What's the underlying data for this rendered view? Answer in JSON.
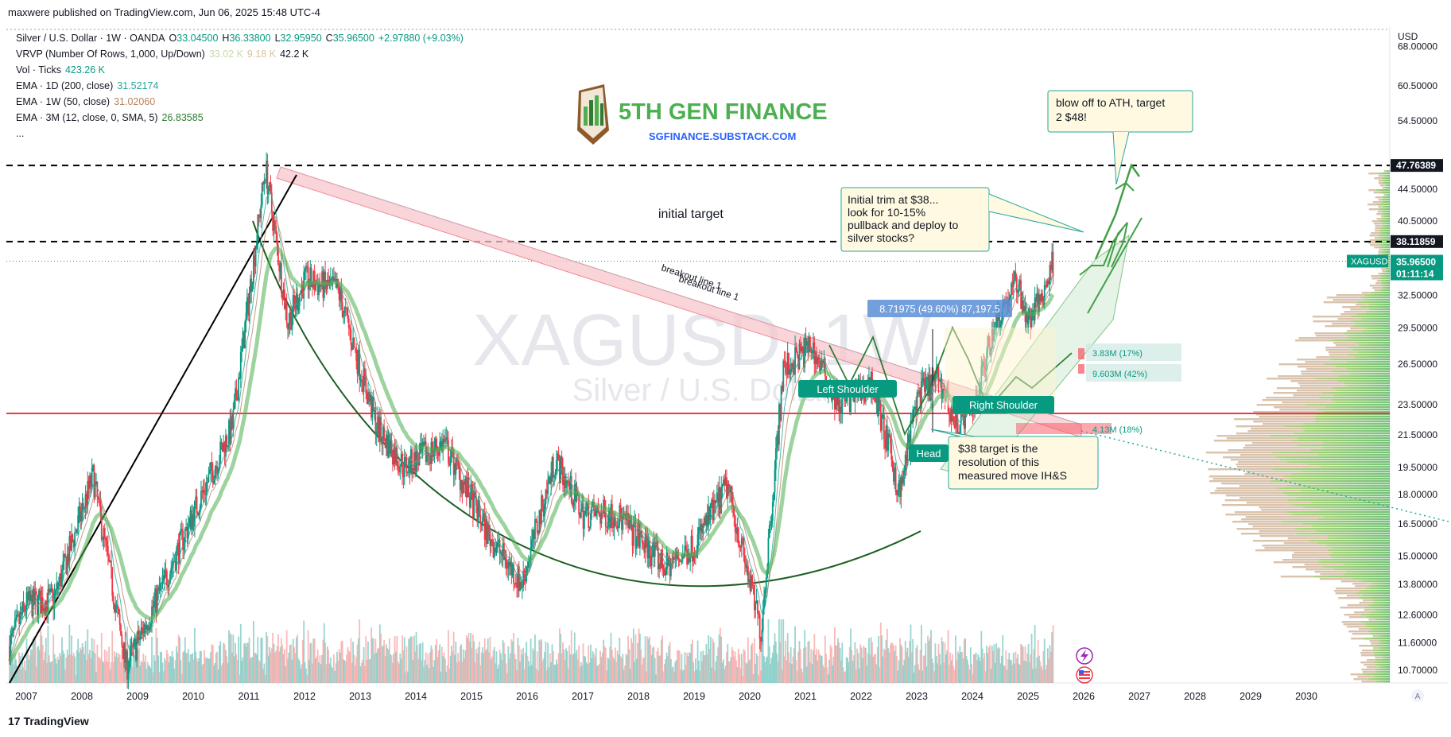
{
  "header": {
    "published": "maxwere published on TradingView.com, Jun 06, 2025 15:48 UTC-4"
  },
  "legend": {
    "symbol": "Silver / U.S. Dollar · 1W · OANDA",
    "ohlc": {
      "o_label": "O",
      "o": "33.04500",
      "h_label": "H",
      "h": "36.33800",
      "l_label": "L",
      "l": "32.95950",
      "c_label": "C",
      "c": "35.96500",
      "change": "+2.97880 (+9.03%)"
    },
    "vrvp": {
      "label": "VRVP (Number Of Rows, 1,000, Up/Down)",
      "v1": "33.02 K",
      "v2": "9.18 K",
      "v3": "42.2 K"
    },
    "vol": {
      "label": "Vol · Ticks",
      "value": "423.26 K"
    },
    "ema1": {
      "label": "EMA · 1D (200, close)",
      "value": "31.52174"
    },
    "ema2": {
      "label": "EMA · 1W (50, close)",
      "value": "31.02060"
    },
    "ema3": {
      "label": "EMA · 3M (12, close, 0, SMA, 5)",
      "value": "26.83585"
    },
    "more": "..."
  },
  "watermark": {
    "ticker": "XAGUSD, 1W",
    "name": "Silver / U.S. Dollar"
  },
  "brand": {
    "name": "5TH GEN FINANCE",
    "url": "SGFINANCE.SUBSTACK.COM"
  },
  "annotations": {
    "initial_target": "initial target",
    "breakout1": "breakout line 1",
    "breakout2": "breakout line 1",
    "blow_off": [
      "blow off to ATH, target",
      "2 $48!"
    ],
    "trim": [
      "Initial trim at $38...",
      "look for 10-15%",
      "pullback and deploy to",
      "silver stocks?"
    ],
    "target38": [
      "$38 target is the",
      "resolution of this",
      "measured move IH&S"
    ],
    "left_shoulder": "Left Shoulder",
    "head": "Head",
    "right_shoulder": "Right Shoulder",
    "measure": "8.71975 (49.60%) 87,197.5",
    "vol_box1": "3.83M (17%)",
    "vol_box2": "9.603M (42%)",
    "vol_box3": "4.13M (18%)"
  },
  "colors": {
    "up": "#089981",
    "down": "#f23645",
    "ema_green": "#4caf50",
    "accent_blue": "#2962ff",
    "brand_green": "#4caf50"
  },
  "footer": {
    "logo": "17",
    "brand": "TradingView"
  },
  "chart_data": {
    "type": "candlestick",
    "title": "Silver / U.S. Dollar · 1W · OANDA",
    "x_ticks": [
      "2007",
      "2008",
      "2009",
      "2010",
      "2011",
      "2012",
      "2013",
      "2014",
      "2015",
      "2016",
      "2017",
      "2018",
      "2019",
      "2020",
      "2021",
      "2022",
      "2023",
      "2024",
      "2025",
      "2026",
      "2027",
      "2028",
      "2029",
      "2030"
    ],
    "y_scale": "log",
    "y_currency": "USD",
    "y_ticks": [
      "68.00000",
      "60.50000",
      "54.50000",
      "44.50000",
      "40.50000",
      "32.50000",
      "29.50000",
      "26.50000",
      "23.50000",
      "21.50000",
      "19.50000",
      "18.00000",
      "16.50000",
      "15.00000",
      "13.80000",
      "12.60000",
      "11.60000",
      "10.70000"
    ],
    "ylim": [
      10.3,
      72
    ],
    "price_labels": [
      {
        "value": 47.76389,
        "text": "47.76389",
        "style": "black"
      },
      {
        "value": 38.11859,
        "text": "38.11859",
        "style": "black"
      },
      {
        "value": 35.965,
        "text": "35.96500",
        "style": "green",
        "tag": "XAGUSD",
        "timer": "01:11:14"
      }
    ],
    "horizontal_lines": [
      {
        "value": 47.76389,
        "style": "dashed"
      },
      {
        "value": 38.11859,
        "style": "dashed"
      },
      {
        "value": 22.9,
        "style": "solid-red"
      }
    ],
    "approx_weekly_close_path": [
      [
        2006.7,
        11.5
      ],
      [
        2007.0,
        13.0
      ],
      [
        2007.5,
        13.2
      ],
      [
        2008.2,
        19.0
      ],
      [
        2008.8,
        10.8
      ],
      [
        2009.5,
        14.0
      ],
      [
        2010.0,
        17.0
      ],
      [
        2010.7,
        22.0
      ],
      [
        2011.3,
        47.5
      ],
      [
        2011.7,
        30.0
      ],
      [
        2012.0,
        34.0
      ],
      [
        2012.6,
        33.0
      ],
      [
        2013.3,
        22.0
      ],
      [
        2013.8,
        19.5
      ],
      [
        2014.5,
        21.0
      ],
      [
        2015.3,
        16.0
      ],
      [
        2015.9,
        13.8
      ],
      [
        2016.5,
        20.0
      ],
      [
        2017.0,
        17.0
      ],
      [
        2017.6,
        17.0
      ],
      [
        2018.5,
        14.5
      ],
      [
        2019.0,
        15.5
      ],
      [
        2019.6,
        18.5
      ],
      [
        2020.2,
        12.0
      ],
      [
        2020.6,
        26.0
      ],
      [
        2021.1,
        28.0
      ],
      [
        2021.6,
        23.5
      ],
      [
        2022.2,
        25.0
      ],
      [
        2022.7,
        18.0
      ],
      [
        2023.0,
        24.0
      ],
      [
        2023.4,
        25.5
      ],
      [
        2023.7,
        22.0
      ],
      [
        2024.0,
        23.0
      ],
      [
        2024.4,
        30.0
      ],
      [
        2024.8,
        34.0
      ],
      [
        2025.0,
        30.0
      ],
      [
        2025.3,
        33.0
      ],
      [
        2025.45,
        35.965
      ]
    ]
  }
}
